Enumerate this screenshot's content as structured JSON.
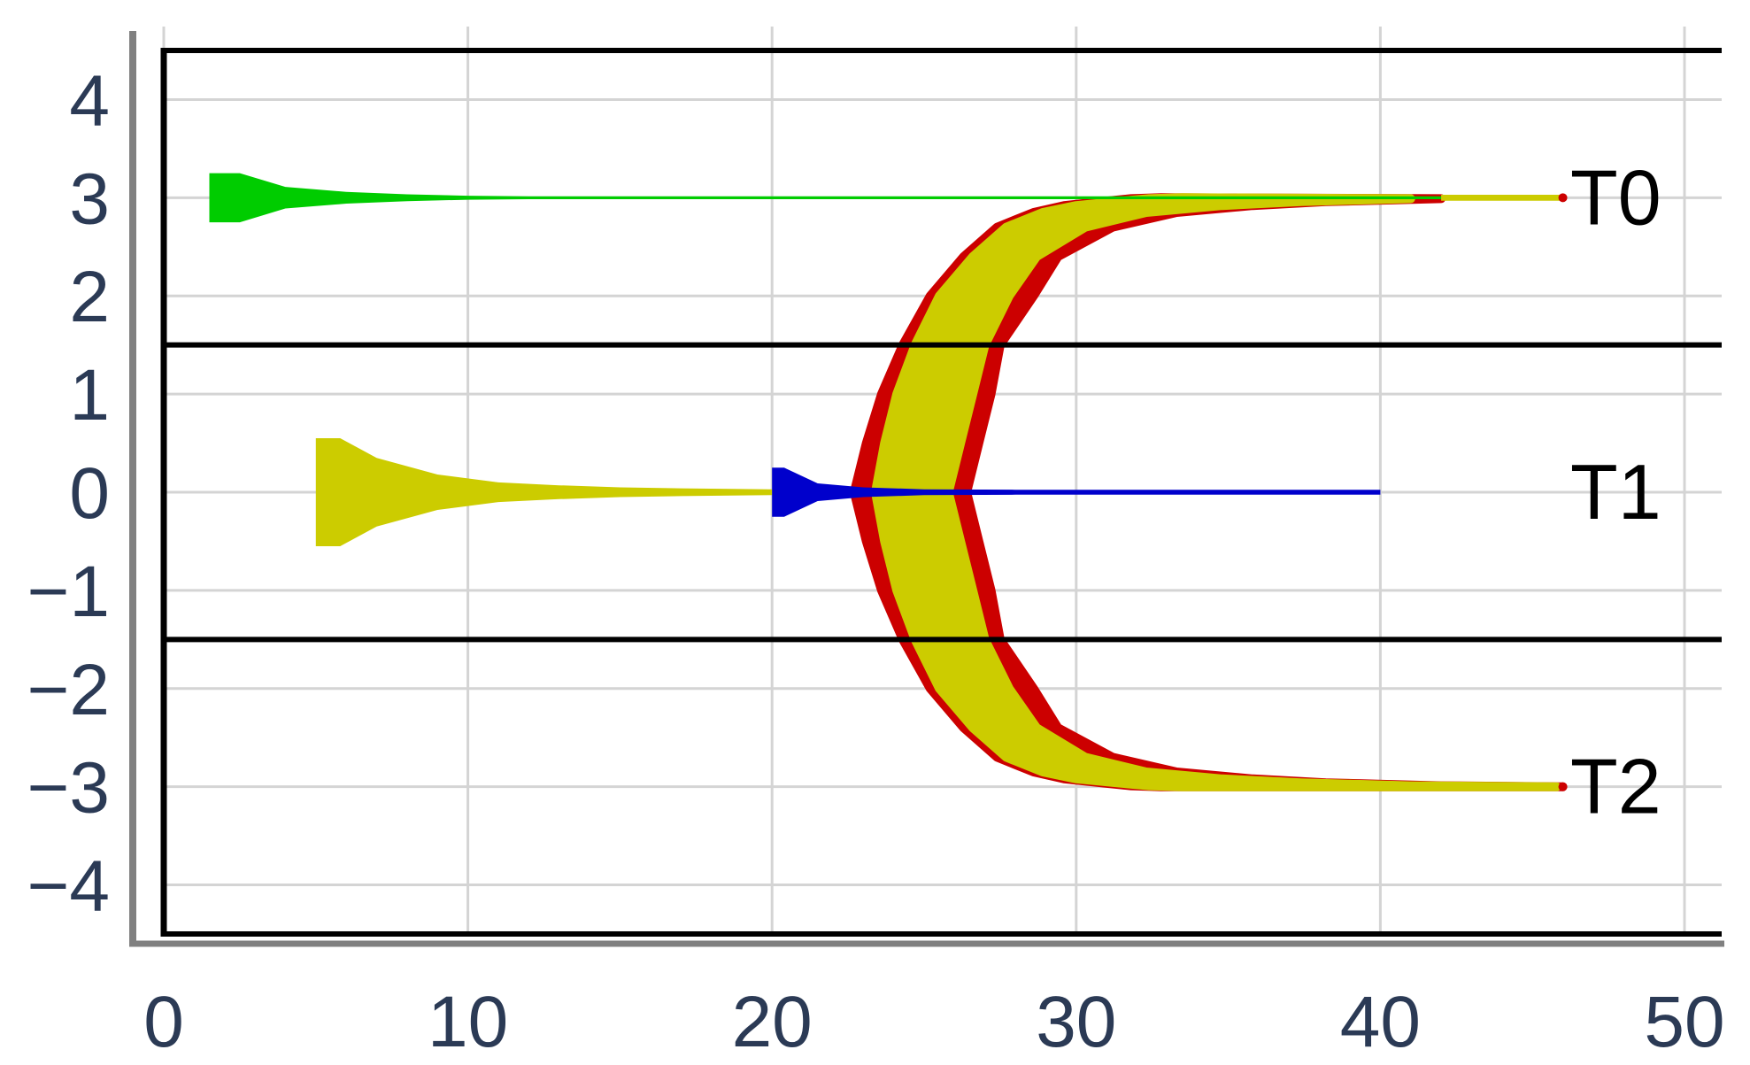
{
  "chart_data": {
    "type": "area",
    "title": "",
    "xlabel": "",
    "ylabel": "",
    "xlim": [
      0,
      50
    ],
    "ylim": [
      -4.5,
      4.6
    ],
    "x_ticks": [
      "0",
      "10",
      "20",
      "30",
      "40",
      "50"
    ],
    "y_ticks": [
      "4",
      "3",
      "2",
      "1",
      "0",
      "−1",
      "−2",
      "−3",
      "−4"
    ],
    "grid": true,
    "region_boundaries_y": [
      4.5,
      1.5,
      -1.5,
      -4.5
    ],
    "track_labels": [
      {
        "text": "T0",
        "y": 3
      },
      {
        "text": "T1",
        "y": 0
      },
      {
        "text": "T2",
        "y": -3
      }
    ],
    "colors": {
      "green": "#00cc00",
      "yellow": "#cccc00",
      "red": "#cc0000",
      "blue": "#0000cc",
      "grid": "#d4d4d4",
      "axis": "#808080",
      "boundary": "#000000",
      "tick_text": "#2b3a55"
    },
    "series": [
      {
        "color": "green",
        "x": [
          1.5,
          2.5,
          4,
          6,
          8,
          10,
          12,
          42
        ],
        "y": [
          3,
          3,
          3,
          3,
          3,
          3,
          3,
          3
        ],
        "halfwidth": [
          0.25,
          0.25,
          0.11,
          0.06,
          0.035,
          0.02,
          0.015,
          0.015
        ]
      },
      {
        "color": "yellow",
        "x": [
          5,
          5.8,
          7,
          9,
          11,
          13,
          15,
          17,
          20
        ],
        "y": [
          0,
          0,
          0,
          0,
          0,
          0,
          0,
          0,
          0
        ],
        "halfwidth": [
          0.55,
          0.55,
          0.35,
          0.18,
          0.1,
          0.07,
          0.05,
          0.04,
          0.03
        ]
      },
      {
        "color": "blue",
        "x": [
          20,
          20.4,
          21.5,
          23,
          25,
          28,
          40
        ],
        "y": [
          0,
          0,
          0,
          0,
          0,
          0,
          0
        ],
        "halfwidth": [
          0.25,
          0.25,
          0.09,
          0.05,
          0.03,
          0.025,
          0.025
        ]
      },
      {
        "color": "yellow",
        "x": [
          42,
          46
        ],
        "y": [
          3,
          3
        ],
        "halfwidth": [
          0.03,
          0.03
        ]
      },
      {
        "color": "red",
        "left_edge_x": [
          22.7,
          23.1,
          23.6,
          24.3,
          25.2,
          26.3,
          27.4,
          28.6,
          29.6,
          30.8,
          31.8,
          32.8
        ],
        "right_edge_x": [
          26.4,
          26.8,
          27.2,
          27.5,
          28.6,
          29.4,
          31.2,
          33.3,
          35.8,
          38.2,
          42.0,
          46.0
        ],
        "abs_y": [
          0,
          0.5,
          1.0,
          1.5,
          2.0,
          2.4,
          2.7,
          2.85,
          2.92,
          2.96,
          2.99,
          3.0
        ],
        "mirror_about_zero": true
      },
      {
        "color": "yellow",
        "left_edge_x": [
          23.4,
          23.7,
          24.1,
          24.7,
          25.5,
          26.6,
          27.7,
          28.9,
          30.0,
          31.3,
          32.4,
          33.5
        ],
        "right_edge_x": [
          25.8,
          26.2,
          26.6,
          27.0,
          27.8,
          28.7,
          30.3,
          32.3,
          34.8,
          37.4,
          41.0,
          45.8
        ],
        "abs_y": [
          0,
          0.5,
          1.0,
          1.5,
          2.0,
          2.4,
          2.7,
          2.85,
          2.92,
          2.96,
          2.99,
          3.0
        ],
        "mirror_about_zero": true
      }
    ]
  }
}
